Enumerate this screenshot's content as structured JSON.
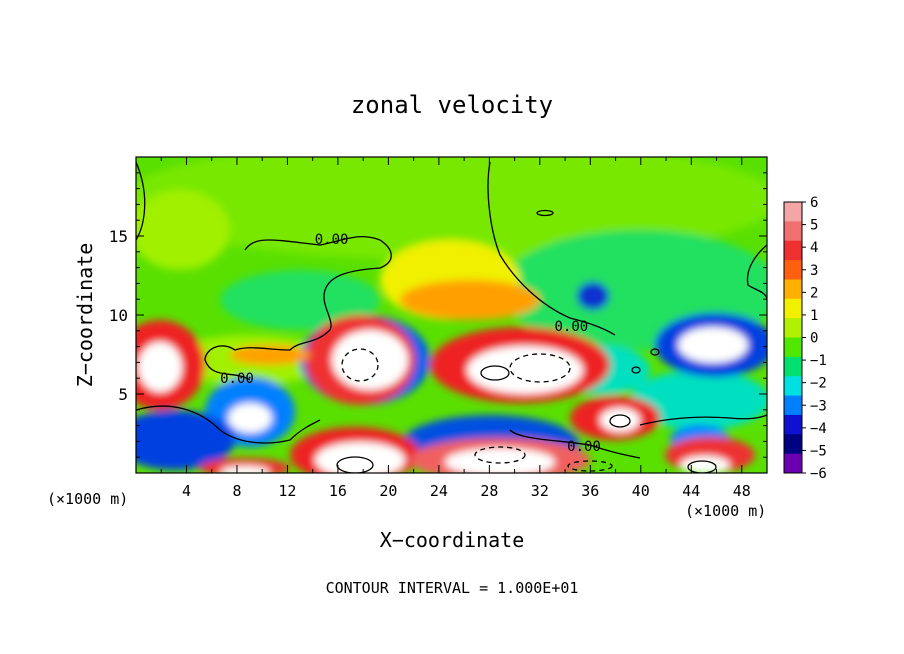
{
  "chart_data": {
    "type": "heatmap",
    "title": "zonal velocity",
    "xlabel": "X−coordinate",
    "ylabel": "Z−coordinate",
    "x_unit_left": "(×1000 m)",
    "x_unit_right": "(×1000 m)",
    "footer": "CONTOUR INTERVAL = 1.000E+01",
    "xlim": [
      0,
      50
    ],
    "ylim": [
      0,
      20
    ],
    "xticks": [
      4,
      8,
      12,
      16,
      20,
      24,
      28,
      32,
      36,
      40,
      44,
      48
    ],
    "yticks": [
      5,
      10,
      15
    ],
    "colorbar": {
      "labels": [
        "6",
        "5",
        "4",
        "3",
        "2",
        "1",
        "0",
        "−1",
        "−2",
        "−3",
        "−4",
        "−5",
        "−6"
      ],
      "range": [
        -6,
        6
      ],
      "colors": [
        "#f4a6a6",
        "#f07070",
        "#ee3030",
        "#ff6010",
        "#ffb000",
        "#f0f000",
        "#b0f000",
        "#50e800",
        "#00e070",
        "#00e0e0",
        "#0080ff",
        "#1010d0",
        "#000080",
        "#6a00b0"
      ]
    },
    "contour_labels": [
      {
        "text": "0.00",
        "x": 15.5,
        "y": 14.8
      },
      {
        "text": "0.00",
        "x": 8.0,
        "y": 6.0
      },
      {
        "text": "0.00",
        "x": 34.5,
        "y": 9.3
      },
      {
        "text": "0.00",
        "x": 35.5,
        "y": 1.7
      }
    ],
    "features": [
      {
        "sign": "positive",
        "x": 2.2,
        "y": 6.6,
        "rx": 2.2,
        "ry": 1.8
      },
      {
        "sign": "negative",
        "x": 9.2,
        "y": 3.0,
        "rx": 1.6,
        "ry": 1.1
      },
      {
        "sign": "negative",
        "x": 3.0,
        "y": 1.5,
        "rx": 3.0,
        "ry": 1.5
      },
      {
        "sign": "positive",
        "x": 18.0,
        "y": 6.8,
        "rx": 3.2,
        "ry": 2.2
      },
      {
        "sign": "positive",
        "x": 30.0,
        "y": 6.5,
        "rx": 4.8,
        "ry": 1.8
      },
      {
        "sign": "positive",
        "x": 38.0,
        "y": 3.2,
        "rx": 2.6,
        "ry": 1.2
      },
      {
        "sign": "negative",
        "x": 45.0,
        "y": 7.5,
        "rx": 3.4,
        "ry": 1.5
      },
      {
        "sign": "positive",
        "x": 19.0,
        "y": 0.8,
        "rx": 4.0,
        "ry": 1.2
      },
      {
        "sign": "positive",
        "x": 30.0,
        "y": 1.0,
        "rx": 5.0,
        "ry": 1.3
      },
      {
        "sign": "positive",
        "x": 45.0,
        "y": 0.5,
        "rx": 3.0,
        "ry": 0.8
      },
      {
        "sign": "positive",
        "x": 9.0,
        "y": 0.3,
        "rx": 2.5,
        "ry": 0.5
      },
      {
        "sign": "negative",
        "x": 36.0,
        "y": 11.0,
        "rx": 1.3,
        "ry": 1.0
      }
    ]
  }
}
